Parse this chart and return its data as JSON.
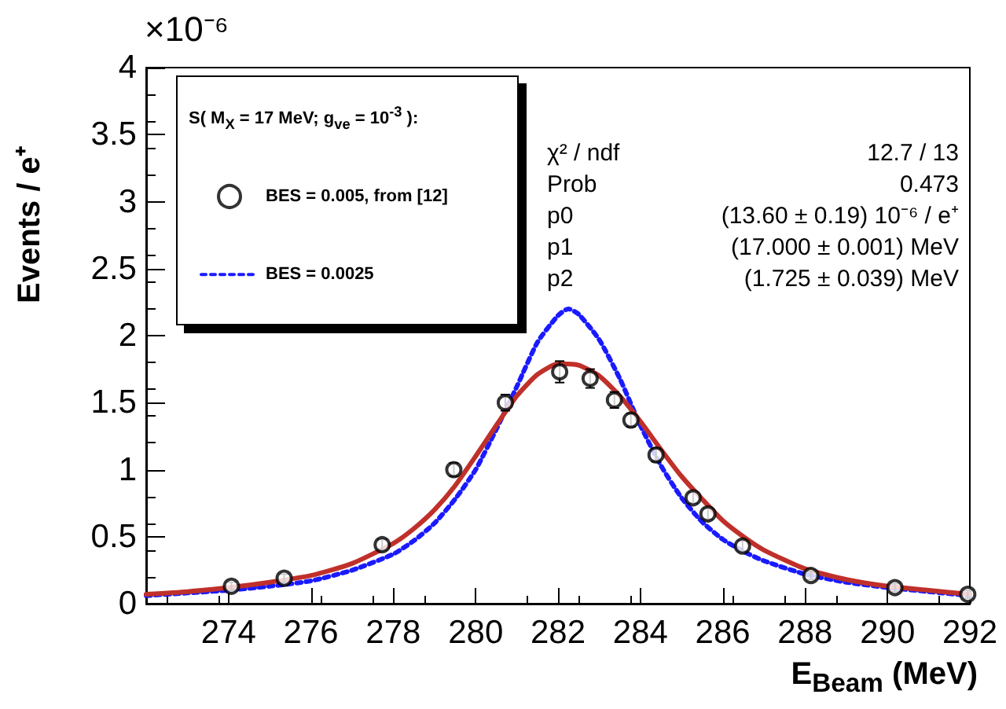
{
  "chart_data": {
    "type": "line",
    "xlabel": "E$_{Beam}$ (MeV)",
    "ylabel": "Events / e⁺",
    "legend_title": "S( M$_{X}$ = 17 MeV; g$_{ve}$ = 10$^{-3}$ ):",
    "legend": "top left",
    "annotations": [
      "×10⁻⁶",
      "χ² / ndf",
      "12.7 / 13",
      "Prob",
      "0.473",
      "p0",
      "(13.60 ± 0.19) 10⁻⁶ / e⁺",
      "p1",
      "(17.000 ± 0.001) MeV",
      "p2",
      "(1.725 ±  0.039) MeV"
    ],
    "xlim": [
      272,
      292
    ],
    "xticks": [
      274,
      276,
      278,
      280,
      282,
      284,
      286,
      288,
      290,
      292
    ],
    "ylim": [
      0,
      4
    ],
    "yticks": [
      0,
      0.5,
      1,
      1.5,
      2,
      2.5,
      3,
      3.5,
      4
    ],
    "grid": false,
    "series": [
      {
        "type": "scatter",
        "name": "BES = 0.005, from [12]",
        "color": "#000000",
        "marker": "circle",
        "x": [
          274.07,
          275.35,
          277.73,
          279.47,
          280.72,
          282.04,
          282.78,
          283.37,
          283.77,
          284.38,
          285.28,
          285.64,
          286.48,
          288.14,
          290.18,
          291.95
        ],
        "values": [
          0.13,
          0.19,
          0.44,
          1.0,
          1.5,
          1.73,
          1.68,
          1.52,
          1.37,
          1.11,
          0.79,
          0.67,
          0.43,
          0.21,
          0.12,
          0.07
        ],
        "errors": [
          0.03,
          0.03,
          0.04,
          0.05,
          0.06,
          0.08,
          0.07,
          0.06,
          0.05,
          0.05,
          0.04,
          0.04,
          0.04,
          0.03,
          0.03,
          0.03
        ]
      },
      {
        "name": "BES = 0.0025",
        "color": "#1a1aff",
        "line_style": "dotted",
        "marker": "none",
        "x": [
          272,
          273,
          274,
          275,
          276,
          277,
          278,
          278.5,
          279,
          279.5,
          280,
          280.5,
          281,
          281.5,
          282,
          282.25,
          282.5,
          283,
          283.5,
          284,
          284.5,
          285,
          285.5,
          286,
          286.5,
          287,
          288,
          289,
          290,
          291,
          292
        ],
        "values": [
          0.06,
          0.08,
          0.1,
          0.13,
          0.17,
          0.25,
          0.37,
          0.47,
          0.6,
          0.78,
          1.0,
          1.3,
          1.62,
          1.95,
          2.15,
          2.2,
          2.16,
          1.97,
          1.68,
          1.33,
          1.03,
          0.79,
          0.61,
          0.48,
          0.39,
          0.32,
          0.22,
          0.16,
          0.12,
          0.09,
          0.06
        ]
      },
      {
        "color": "#c0302a",
        "line_style": "solid",
        "marker": "none",
        "x": [
          272,
          273,
          274,
          275,
          276,
          277,
          278,
          278.5,
          279,
          279.5,
          280,
          280.5,
          281,
          281.5,
          282,
          282.5,
          283,
          283.5,
          284,
          284.5,
          285,
          285.5,
          286,
          286.5,
          287,
          288,
          289,
          290,
          291,
          292
        ],
        "values": [
          0.07,
          0.09,
          0.12,
          0.16,
          0.21,
          0.3,
          0.45,
          0.56,
          0.7,
          0.88,
          1.1,
          1.33,
          1.55,
          1.71,
          1.79,
          1.78,
          1.7,
          1.55,
          1.36,
          1.15,
          0.95,
          0.78,
          0.62,
          0.5,
          0.4,
          0.26,
          0.18,
          0.13,
          0.1,
          0.07
        ]
      }
    ]
  }
}
